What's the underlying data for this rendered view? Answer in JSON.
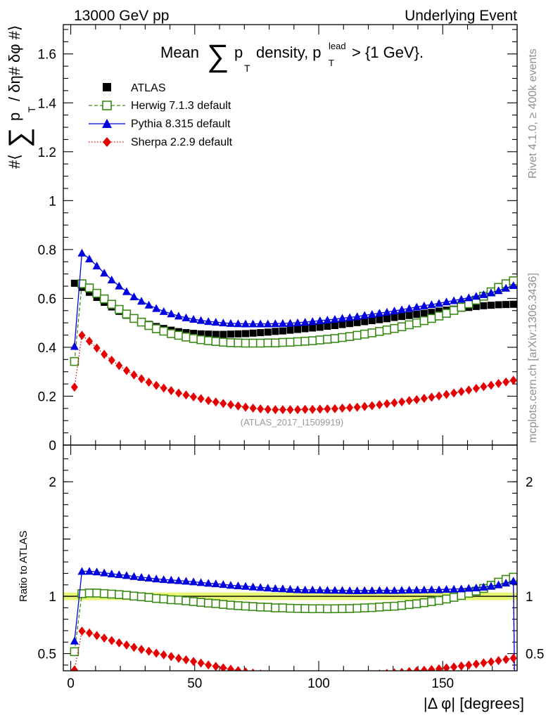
{
  "header": {
    "left": "13000 GeV pp",
    "right": "Underlying Event"
  },
  "side_labels": {
    "rivet": "Rivet 4.1.0, ≥ 400k events",
    "mcplots": "mcplots.cern.ch [arXiv:1306.3436]"
  },
  "chart_data": [
    {
      "type": "scatter",
      "panel": "main",
      "title": "Mean ∑ p_T density, p_T^lead > {1 GeV}.",
      "ylabel": "#⟨ ∑ p_T / δη# δφ #⟩",
      "ylim": [
        0,
        1.72
      ],
      "xlim": [
        -3,
        180
      ],
      "yticks": [
        0,
        0.2,
        0.4,
        0.6,
        0.8,
        1,
        1.2,
        1.4,
        1.6
      ],
      "ytick_labels": [
        "0",
        "0.2",
        "0.4",
        "0.6",
        "0.8",
        "1",
        "1.2",
        "1.4",
        "1.6"
      ],
      "xticks": [
        0,
        50,
        100,
        150
      ],
      "watermark": "(ATLAS_2017_I1509919)",
      "legend": [
        "ATLAS",
        "Herwig 7.1.3 default",
        "Pythia 8.315 default",
        "Sherpa 2.2.9 default"
      ],
      "x": [
        1.5,
        4.5,
        7.5,
        10.5,
        13.5,
        16.5,
        19.5,
        22.5,
        25.5,
        28.5,
        31.5,
        34.5,
        37.5,
        40.5,
        43.5,
        46.5,
        49.5,
        52.5,
        55.5,
        58.5,
        61.5,
        64.5,
        67.5,
        70.5,
        73.5,
        76.5,
        79.5,
        82.5,
        85.5,
        88.5,
        91.5,
        94.5,
        97.5,
        100.5,
        103.5,
        106.5,
        109.5,
        112.5,
        115.5,
        118.5,
        121.5,
        124.5,
        127.5,
        130.5,
        133.5,
        136.5,
        139.5,
        142.5,
        145.5,
        148.5,
        151.5,
        154.5,
        157.5,
        160.5,
        163.5,
        166.5,
        169.5,
        172.5,
        175.5,
        178.5
      ],
      "series": [
        {
          "name": "ATLAS",
          "values": [
            0.662,
            0.645,
            0.625,
            0.604,
            0.584,
            0.565,
            0.547,
            0.531,
            0.517,
            0.505,
            0.494,
            0.485,
            0.477,
            0.47,
            0.464,
            0.46,
            0.457,
            0.455,
            0.454,
            0.453,
            0.453,
            0.454,
            0.455,
            0.456,
            0.458,
            0.46,
            0.462,
            0.465,
            0.467,
            0.47,
            0.473,
            0.476,
            0.479,
            0.482,
            0.486,
            0.489,
            0.493,
            0.497,
            0.501,
            0.505,
            0.509,
            0.513,
            0.517,
            0.522,
            0.526,
            0.53,
            0.535,
            0.539,
            0.543,
            0.548,
            0.552,
            0.556,
            0.56,
            0.563,
            0.567,
            0.57,
            0.572,
            0.574,
            0.575,
            0.576
          ]
        },
        {
          "name": "Herwig 7.1.3 default",
          "values": [
            0.342,
            0.66,
            0.643,
            0.621,
            0.598,
            0.576,
            0.555,
            0.536,
            0.518,
            0.503,
            0.489,
            0.476,
            0.466,
            0.456,
            0.449,
            0.442,
            0.436,
            0.431,
            0.427,
            0.424,
            0.421,
            0.419,
            0.418,
            0.417,
            0.417,
            0.417,
            0.418,
            0.418,
            0.42,
            0.421,
            0.423,
            0.425,
            0.427,
            0.43,
            0.433,
            0.436,
            0.44,
            0.444,
            0.449,
            0.454,
            0.459,
            0.465,
            0.471,
            0.477,
            0.484,
            0.492,
            0.5,
            0.509,
            0.518,
            0.528,
            0.539,
            0.551,
            0.564,
            0.578,
            0.593,
            0.609,
            0.627,
            0.645,
            0.66,
            0.672
          ]
        },
        {
          "name": "Pythia 8.315 default",
          "values": [
            0.404,
            0.786,
            0.762,
            0.733,
            0.704,
            0.676,
            0.651,
            0.628,
            0.607,
            0.589,
            0.573,
            0.559,
            0.547,
            0.537,
            0.528,
            0.521,
            0.515,
            0.51,
            0.506,
            0.503,
            0.5,
            0.498,
            0.497,
            0.496,
            0.496,
            0.496,
            0.496,
            0.497,
            0.498,
            0.499,
            0.501,
            0.503,
            0.506,
            0.509,
            0.512,
            0.515,
            0.519,
            0.522,
            0.526,
            0.531,
            0.535,
            0.54,
            0.544,
            0.549,
            0.554,
            0.559,
            0.565,
            0.57,
            0.575,
            0.58,
            0.586,
            0.591,
            0.597,
            0.603,
            0.609,
            0.616,
            0.623,
            0.632,
            0.642,
            0.653
          ]
        },
        {
          "name": "Sherpa 2.2.9 default",
          "values": [
            0.237,
            0.449,
            0.425,
            0.397,
            0.371,
            0.347,
            0.325,
            0.305,
            0.287,
            0.271,
            0.257,
            0.244,
            0.233,
            0.223,
            0.213,
            0.205,
            0.197,
            0.19,
            0.182,
            0.176,
            0.17,
            0.165,
            0.16,
            0.155,
            0.151,
            0.148,
            0.146,
            0.145,
            0.145,
            0.145,
            0.145,
            0.146,
            0.146,
            0.147,
            0.148,
            0.149,
            0.151,
            0.153,
            0.155,
            0.158,
            0.161,
            0.165,
            0.169,
            0.173,
            0.177,
            0.182,
            0.186,
            0.191,
            0.196,
            0.201,
            0.207,
            0.213,
            0.219,
            0.225,
            0.232,
            0.239,
            0.245,
            0.252,
            0.258,
            0.265
          ]
        }
      ]
    },
    {
      "type": "line",
      "panel": "ratio",
      "ylabel": "Ratio to ATLAS",
      "xlabel": "|Δ φ| [degrees]",
      "ylim": [
        0.35,
        2.32
      ],
      "xlim": [
        -3,
        180
      ],
      "yticks": [
        0.5,
        1,
        2
      ],
      "ytick_labels": [
        "0.5",
        "1",
        "2"
      ],
      "xticks": [
        0,
        50,
        100,
        150
      ],
      "xtick_labels": [
        "0",
        "50",
        "100",
        "150"
      ],
      "reference": 1.0,
      "reference_band": [
        0.985,
        1.015
      ],
      "reference_color": "#d4ef00"
    }
  ],
  "style": {
    "atlas_color": "#000000",
    "herwig_color": "#3a8a16",
    "pythia_color": "#0000e0",
    "sherpa_color": "#e40000",
    "watermark_color": "#999999",
    "side_label_color": "#909090"
  }
}
